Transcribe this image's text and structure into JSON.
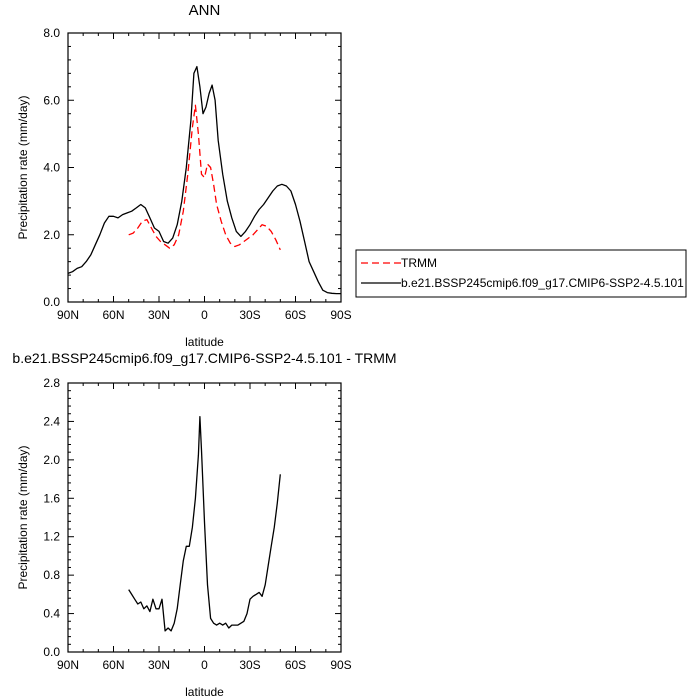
{
  "chart_data": [
    {
      "type": "line",
      "title": "ANN",
      "xlabel": "latitude",
      "ylabel": "Precipitation rate (mm/day)",
      "xlim": [
        90,
        -90
      ],
      "ylim": [
        0,
        8
      ],
      "x_ticks": [
        90,
        60,
        30,
        0,
        -30,
        -60,
        -90
      ],
      "x_tick_labels": [
        "90N",
        "60N",
        "30N",
        "0",
        "30S",
        "60S",
        "90S"
      ],
      "y_ticks": [
        0,
        2,
        4,
        6,
        8
      ],
      "y_tick_labels": [
        "0.0",
        "2.0",
        "4.0",
        "6.0",
        "8.0"
      ],
      "grid": false,
      "legend_position": "right",
      "series": [
        {
          "name": "TRMM",
          "color": "#ff0000",
          "dash": "dashed",
          "x": [
            50,
            47,
            44,
            41,
            38,
            35,
            32,
            29,
            26,
            23,
            20,
            17,
            14,
            11,
            8,
            6,
            4,
            2,
            0,
            -2,
            -4,
            -6,
            -8,
            -11,
            -14,
            -17,
            -20,
            -23,
            -26,
            -29,
            -32,
            -35,
            -38,
            -41,
            -44,
            -47,
            -50
          ],
          "y": [
            2.0,
            2.05,
            2.2,
            2.4,
            2.45,
            2.2,
            1.95,
            1.8,
            1.7,
            1.6,
            1.7,
            2.0,
            2.7,
            3.8,
            5.2,
            5.85,
            5.0,
            3.8,
            3.7,
            4.1,
            4.0,
            3.5,
            2.9,
            2.4,
            2.0,
            1.75,
            1.65,
            1.7,
            1.8,
            1.9,
            2.0,
            2.15,
            2.3,
            2.25,
            2.1,
            1.85,
            1.55
          ]
        },
        {
          "name": "b.e21.BSSP245cmip6.f09_g17.CMIP6-SSP2-4.5.101",
          "color": "#000000",
          "dash": "solid",
          "x": [
            90,
            87,
            84,
            81,
            78,
            75,
            72,
            69,
            66,
            63,
            60,
            57,
            54,
            51,
            48,
            45,
            42,
            39,
            36,
            33,
            30,
            27,
            24,
            21,
            18,
            15,
            12,
            9,
            7,
            5,
            3,
            1,
            -1,
            -3,
            -5,
            -7,
            -9,
            -12,
            -15,
            -18,
            -21,
            -24,
            -27,
            -30,
            -33,
            -36,
            -39,
            -42,
            -45,
            -48,
            -51,
            -54,
            -57,
            -60,
            -63,
            -66,
            -69,
            -72,
            -75,
            -78,
            -81,
            -84,
            -87,
            -90
          ],
          "y": [
            0.85,
            0.9,
            1.0,
            1.05,
            1.2,
            1.4,
            1.7,
            2.0,
            2.35,
            2.55,
            2.55,
            2.5,
            2.6,
            2.65,
            2.7,
            2.8,
            2.9,
            2.8,
            2.5,
            2.2,
            2.1,
            1.8,
            1.75,
            1.9,
            2.3,
            3.0,
            4.0,
            5.4,
            6.8,
            7.0,
            6.4,
            5.6,
            5.8,
            6.2,
            6.45,
            6.0,
            4.8,
            3.8,
            3.0,
            2.5,
            2.1,
            1.95,
            2.1,
            2.3,
            2.55,
            2.75,
            2.9,
            3.1,
            3.3,
            3.45,
            3.5,
            3.45,
            3.3,
            2.9,
            2.4,
            1.8,
            1.2,
            0.9,
            0.6,
            0.35,
            0.28,
            0.26,
            0.25,
            0.25
          ]
        }
      ]
    },
    {
      "type": "line",
      "title": "b.e21.BSSP245cmip6.f09_g17.CMIP6-SSP2-4.5.101 - TRMM",
      "xlabel": "latitude",
      "ylabel": "Precipitation rate (mm/day)",
      "xlim": [
        90,
        -90
      ],
      "ylim": [
        0,
        2.8
      ],
      "x_ticks": [
        90,
        60,
        30,
        0,
        -30,
        -60,
        -90
      ],
      "x_tick_labels": [
        "90N",
        "60N",
        "30N",
        "0",
        "30S",
        "60S",
        "90S"
      ],
      "y_ticks": [
        0,
        0.4,
        0.8,
        1.2,
        1.6,
        2.0,
        2.4,
        2.8
      ],
      "y_tick_labels": [
        "0.0",
        "0.4",
        "0.8",
        "1.2",
        "1.6",
        "2.0",
        "2.4",
        "2.8"
      ],
      "grid": false,
      "series": [
        {
          "color": "#000000",
          "dash": "solid",
          "x": [
            50,
            48,
            46,
            44,
            42,
            40,
            38,
            36,
            34,
            32,
            30,
            28,
            26,
            24,
            22,
            20,
            18,
            16,
            14,
            12,
            10,
            8,
            6,
            4,
            3,
            2,
            0,
            -2,
            -4,
            -6,
            -8,
            -10,
            -12,
            -14,
            -16,
            -18,
            -20,
            -22,
            -24,
            -26,
            -28,
            -30,
            -32,
            -34,
            -36,
            -38,
            -40,
            -42,
            -44,
            -46,
            -48,
            -50
          ],
          "y": [
            0.65,
            0.6,
            0.55,
            0.5,
            0.52,
            0.45,
            0.48,
            0.42,
            0.55,
            0.45,
            0.45,
            0.55,
            0.22,
            0.25,
            0.22,
            0.3,
            0.45,
            0.7,
            0.95,
            1.1,
            1.1,
            1.3,
            1.6,
            2.05,
            2.45,
            2.1,
            1.35,
            0.7,
            0.35,
            0.3,
            0.28,
            0.3,
            0.28,
            0.3,
            0.25,
            0.28,
            0.28,
            0.28,
            0.3,
            0.32,
            0.4,
            0.55,
            0.58,
            0.6,
            0.62,
            0.58,
            0.7,
            0.9,
            1.1,
            1.3,
            1.55,
            1.85
          ]
        }
      ]
    }
  ]
}
